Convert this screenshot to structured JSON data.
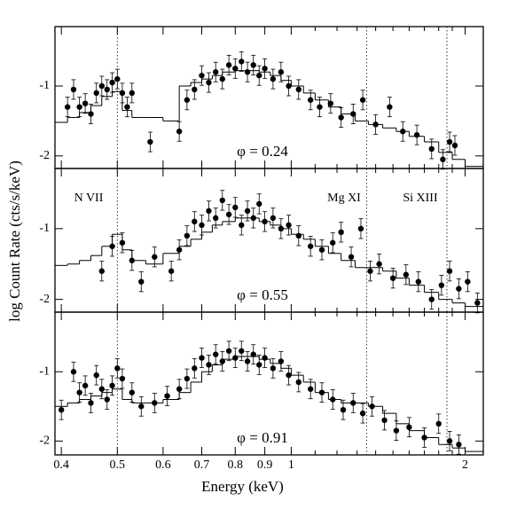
{
  "chart_data": [
    {
      "type": "scatter",
      "label": "φ = 0.24",
      "xlim": [
        0.39,
        2.15
      ],
      "ylim": [
        -2.18,
        -0.15
      ],
      "xticks": [
        0.4,
        0.5,
        0.6,
        0.7,
        0.8,
        0.9,
        1,
        2
      ],
      "xticks_minor": [
        1.1,
        1.2,
        1.3,
        1.4,
        1.5,
        1.6,
        1.7,
        1.8,
        1.9
      ],
      "yticks": [
        -2,
        -1
      ],
      "vlines": [
        0.5,
        1.35,
        1.86
      ],
      "color": "#000000",
      "yerr": 0.14,
      "x": [
        0.41,
        0.42,
        0.43,
        0.44,
        0.45,
        0.46,
        0.47,
        0.48,
        0.49,
        0.5,
        0.51,
        0.52,
        0.53,
        0.57,
        0.64,
        0.66,
        0.68,
        0.7,
        0.72,
        0.74,
        0.76,
        0.78,
        0.8,
        0.82,
        0.84,
        0.86,
        0.88,
        0.9,
        0.93,
        0.96,
        0.99,
        1.03,
        1.08,
        1.12,
        1.17,
        1.22,
        1.28,
        1.33,
        1.4,
        1.48,
        1.56,
        1.65,
        1.75,
        1.83,
        1.88,
        1.92
      ],
      "values": [
        -1.3,
        -1.05,
        -1.3,
        -1.25,
        -1.4,
        -1.1,
        -1.0,
        -1.05,
        -0.95,
        -0.9,
        -1.1,
        -1.3,
        -1.1,
        -1.8,
        -1.65,
        -1.2,
        -1.05,
        -0.85,
        -0.95,
        -0.8,
        -0.9,
        -0.7,
        -0.75,
        -0.65,
        -0.8,
        -0.7,
        -0.85,
        -0.75,
        -0.9,
        -0.8,
        -1.0,
        -1.05,
        -1.2,
        -1.3,
        -1.25,
        -1.45,
        -1.4,
        -1.2,
        -1.55,
        -1.3,
        -1.65,
        -1.7,
        -1.9,
        -2.05,
        -1.8,
        -1.85
      ],
      "model": {
        "bins": [
          0.39,
          0.41,
          0.43,
          0.45,
          0.47,
          0.49,
          0.51,
          0.53,
          0.56,
          0.6,
          0.64,
          0.67,
          0.7,
          0.73,
          0.76,
          0.8,
          0.84,
          0.88,
          0.92,
          0.96,
          1.0,
          1.05,
          1.1,
          1.16,
          1.22,
          1.29,
          1.36,
          1.44,
          1.52,
          1.6,
          1.7,
          1.8,
          1.9,
          2.0,
          2.15
        ],
        "values": [
          -1.52,
          -1.45,
          -1.38,
          -1.28,
          -1.15,
          -1.08,
          -1.35,
          -1.45,
          -1.45,
          -1.5,
          -1.0,
          -0.95,
          -0.9,
          -0.85,
          -0.8,
          -0.78,
          -0.78,
          -0.8,
          -0.85,
          -0.92,
          -1.0,
          -1.1,
          -1.2,
          -1.3,
          -1.4,
          -1.5,
          -1.55,
          -1.6,
          -1.65,
          -1.72,
          -1.8,
          -1.95,
          -2.05,
          -2.15
        ]
      }
    },
    {
      "type": "scatter",
      "label": "φ = 0.55",
      "ylabel": "log Count Rate (cts/s/keV)",
      "annotations": [
        "N VII",
        "Mg XI",
        "Si XIII"
      ],
      "xlim": [
        0.39,
        2.15
      ],
      "ylim": [
        -2.18,
        -0.15
      ],
      "xticks": [
        0.4,
        0.5,
        0.6,
        0.7,
        0.8,
        0.9,
        1,
        2
      ],
      "xticks_minor": [
        1.1,
        1.2,
        1.3,
        1.4,
        1.5,
        1.6,
        1.7,
        1.8,
        1.9
      ],
      "yticks": [
        -2,
        -1
      ],
      "vlines": [
        0.5,
        1.35,
        1.86
      ],
      "color": "#000000",
      "yerr": 0.14,
      "x": [
        0.47,
        0.49,
        0.51,
        0.53,
        0.55,
        0.58,
        0.62,
        0.64,
        0.66,
        0.68,
        0.7,
        0.72,
        0.74,
        0.76,
        0.78,
        0.8,
        0.82,
        0.84,
        0.86,
        0.88,
        0.9,
        0.93,
        0.96,
        0.99,
        1.03,
        1.08,
        1.13,
        1.18,
        1.22,
        1.27,
        1.32,
        1.37,
        1.42,
        1.5,
        1.58,
        1.66,
        1.75,
        1.82,
        1.88,
        1.95,
        2.02,
        2.1
      ],
      "values": [
        -1.6,
        -1.25,
        -1.2,
        -1.45,
        -1.75,
        -1.4,
        -1.6,
        -1.3,
        -1.1,
        -0.9,
        -0.95,
        -0.75,
        -0.85,
        -0.6,
        -0.8,
        -0.7,
        -0.95,
        -0.75,
        -0.85,
        -0.65,
        -0.9,
        -0.85,
        -1.0,
        -0.95,
        -1.1,
        -1.25,
        -1.3,
        -1.2,
        -1.05,
        -1.4,
        -1.0,
        -1.6,
        -1.5,
        -1.7,
        -1.65,
        -1.75,
        -2.0,
        -1.8,
        -1.6,
        -1.85,
        -1.75,
        -2.05
      ],
      "model": {
        "bins": [
          0.39,
          0.41,
          0.43,
          0.45,
          0.47,
          0.49,
          0.51,
          0.53,
          0.56,
          0.6,
          0.64,
          0.67,
          0.7,
          0.73,
          0.76,
          0.8,
          0.84,
          0.88,
          0.92,
          0.96,
          1.0,
          1.05,
          1.1,
          1.16,
          1.22,
          1.29,
          1.36,
          1.44,
          1.52,
          1.6,
          1.7,
          1.8,
          1.9,
          2.0,
          2.15
        ],
        "values": [
          -1.52,
          -1.5,
          -1.45,
          -1.38,
          -1.25,
          -1.08,
          -1.3,
          -1.45,
          -1.5,
          -1.35,
          -1.25,
          -1.15,
          -1.05,
          -0.95,
          -0.9,
          -0.85,
          -0.85,
          -0.9,
          -0.95,
          -1.0,
          -1.08,
          -1.15,
          -1.25,
          -1.35,
          -1.45,
          -1.55,
          -1.55,
          -1.6,
          -1.7,
          -1.8,
          -1.9,
          -2.0,
          -2.05,
          -2.1
        ]
      }
    },
    {
      "type": "scatter",
      "label": "φ = 0.91",
      "xlabel": "Energy (keV)",
      "xlim": [
        0.39,
        2.15
      ],
      "ylim": [
        -2.2,
        -0.14
      ],
      "xticks": [
        0.4,
        0.5,
        0.6,
        0.7,
        0.8,
        0.9,
        1,
        2
      ],
      "xticks_minor": [
        1.1,
        1.2,
        1.3,
        1.4,
        1.5,
        1.6,
        1.7,
        1.8,
        1.9
      ],
      "yticks": [
        -2,
        -1
      ],
      "vlines": [
        0.5,
        1.35,
        1.86
      ],
      "color": "#000000",
      "yerr": 0.14,
      "x": [
        0.4,
        0.42,
        0.43,
        0.44,
        0.45,
        0.46,
        0.47,
        0.48,
        0.49,
        0.5,
        0.51,
        0.53,
        0.55,
        0.58,
        0.61,
        0.64,
        0.66,
        0.68,
        0.7,
        0.72,
        0.74,
        0.76,
        0.78,
        0.8,
        0.82,
        0.84,
        0.86,
        0.88,
        0.9,
        0.93,
        0.96,
        0.99,
        1.03,
        1.08,
        1.13,
        1.18,
        1.23,
        1.28,
        1.33,
        1.38,
        1.45,
        1.52,
        1.6,
        1.7,
        1.8,
        1.88,
        1.95
      ],
      "values": [
        -1.55,
        -1.0,
        -1.3,
        -1.2,
        -1.45,
        -1.05,
        -1.25,
        -1.4,
        -1.2,
        -0.95,
        -1.1,
        -1.3,
        -1.5,
        -1.45,
        -1.35,
        -1.25,
        -1.1,
        -0.95,
        -0.8,
        -0.9,
        -0.75,
        -0.85,
        -0.7,
        -0.8,
        -0.7,
        -0.85,
        -0.75,
        -0.9,
        -0.8,
        -0.95,
        -0.85,
        -1.05,
        -1.15,
        -1.25,
        -1.3,
        -1.4,
        -1.55,
        -1.45,
        -1.6,
        -1.5,
        -1.7,
        -1.85,
        -1.8,
        -1.95,
        -1.75,
        -2.0,
        -2.05
      ],
      "model": {
        "bins": [
          0.39,
          0.41,
          0.43,
          0.45,
          0.47,
          0.49,
          0.51,
          0.53,
          0.56,
          0.6,
          0.64,
          0.67,
          0.7,
          0.73,
          0.76,
          0.8,
          0.84,
          0.88,
          0.92,
          0.96,
          1.0,
          1.05,
          1.1,
          1.16,
          1.22,
          1.29,
          1.36,
          1.44,
          1.52,
          1.6,
          1.7,
          1.8,
          1.9,
          2.0,
          2.15
        ],
        "values": [
          -1.5,
          -1.45,
          -1.4,
          -1.35,
          -1.3,
          -1.25,
          -1.4,
          -1.45,
          -1.45,
          -1.4,
          -1.3,
          -1.15,
          -1.0,
          -0.9,
          -0.82,
          -0.78,
          -0.78,
          -0.82,
          -0.88,
          -0.95,
          -1.05,
          -1.15,
          -1.3,
          -1.4,
          -1.45,
          -1.45,
          -1.5,
          -1.6,
          -1.75,
          -1.85,
          -1.95,
          -2.05,
          -2.1,
          -2.15
        ]
      }
    }
  ]
}
